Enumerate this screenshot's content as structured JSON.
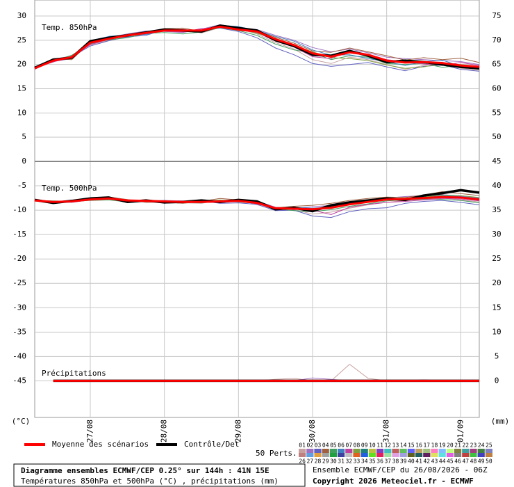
{
  "chart_data": {
    "type": "line",
    "title": "Diagramme ensembles ECMWF/CEP 0.25° sur 144h : 41N 15E",
    "subtitle": "Températures 850hPa et 500hPa (°C) , précipitations (mm)",
    "run_label": "Ensemble ECMWF/CEP du 26/08/2026 - 06Z",
    "copyright": "Copyright 2026 Meteociel.fr - ECMWF",
    "y_unit": "(°C)",
    "y2_unit": "(mm)",
    "mean_label": "Moyenne des scénarios",
    "mean_color": "#ff0000",
    "control_label": "Contrôle/Det",
    "control_color": "#000000",
    "perts_label": "50 Perts.",
    "grid": true,
    "categories": [
      null,
      null,
      null,
      "27/08",
      null,
      null,
      null,
      "28/08",
      null,
      null,
      null,
      "29/08",
      null,
      null,
      null,
      "30/08",
      null,
      null,
      null,
      "31/08",
      null,
      null,
      null,
      "01/09",
      null
    ],
    "panels": [
      {
        "label": "Temp. 850hPa",
        "ylim": [
          0,
          33.3
        ],
        "yticks": [
          0,
          5,
          10,
          15,
          20,
          25,
          30
        ],
        "y2lim": [
          45,
          78.3
        ],
        "y2ticks": [
          50,
          55,
          60,
          65,
          70,
          75
        ],
        "mean": [
          19.2,
          20.8,
          21.5,
          24.5,
          25.3,
          26.0,
          26.5,
          27.0,
          27.0,
          27.0,
          27.8,
          27.2,
          26.8,
          25.2,
          24.0,
          22.3,
          21.6,
          22.5,
          22.0,
          20.8,
          20.4,
          20.5,
          20.3,
          19.8,
          19.5
        ],
        "control": [
          19.3,
          21.0,
          21.4,
          24.8,
          25.5,
          26.0,
          26.6,
          27.2,
          27.0,
          26.8,
          28.0,
          27.5,
          27.0,
          25.0,
          23.8,
          22.0,
          21.8,
          22.8,
          21.8,
          20.5,
          20.8,
          20.5,
          20.0,
          19.5,
          19.2
        ]
      },
      {
        "label": "Temp. 500hPa",
        "ylim": [
          -52.5,
          0
        ],
        "yticks": [
          -45,
          -40,
          -35,
          -30,
          -25,
          -20,
          -15,
          -10,
          -5
        ],
        "y2lim": [
          -7.5,
          45
        ],
        "y2ticks": [
          0,
          5,
          10,
          15,
          20,
          25,
          30,
          35,
          40,
          45
        ],
        "mean": [
          -8.0,
          -8.3,
          -8.2,
          -7.8,
          -7.6,
          -8.0,
          -8.1,
          -8.2,
          -8.3,
          -8.3,
          -8.2,
          -8.1,
          -8.5,
          -9.6,
          -9.7,
          -9.8,
          -9.5,
          -8.8,
          -8.3,
          -7.8,
          -7.7,
          -7.5,
          -7.3,
          -7.4,
          -7.8
        ],
        "control": [
          -7.9,
          -8.5,
          -8.1,
          -7.6,
          -7.4,
          -8.3,
          -8.0,
          -8.4,
          -8.3,
          -8.0,
          -8.3,
          -7.9,
          -8.2,
          -9.8,
          -9.5,
          -10.2,
          -9.0,
          -8.4,
          -8.0,
          -7.6,
          -7.9,
          -7.0,
          -6.5,
          -5.9,
          -6.4
        ],
        "precip_label": "Précipitations",
        "precip_mean": [
          null,
          0,
          0,
          0,
          0,
          0,
          0,
          0,
          0,
          0,
          0,
          0,
          0,
          0,
          0,
          0,
          0,
          0,
          0,
          0,
          0,
          0,
          0,
          0,
          0
        ],
        "precip_control": [
          null,
          0,
          0,
          0,
          0,
          0,
          0,
          0,
          0,
          0,
          0,
          0,
          0,
          0,
          0,
          0,
          0,
          0,
          0,
          0,
          0,
          0,
          0,
          0,
          0
        ]
      }
    ],
    "members": [
      {
        "name": "01",
        "color": "#c8a0a0",
        "t850": [
          19.1,
          21.0,
          21.8,
          24.0,
          25.0,
          25.6,
          26.3,
          27.1,
          27.3,
          26.5,
          27.6,
          27.4,
          26.3,
          24.5,
          23.2,
          21.0,
          20.2,
          21.5,
          21.0,
          20.0,
          19.0,
          19.8,
          20.5,
          19.2,
          18.8
        ],
        "t500": [
          -8.0,
          -8.4,
          -8.1,
          -7.9,
          -7.8,
          -8.2,
          -8.0,
          -8.4,
          -8.5,
          -8.6,
          -8.0,
          -7.8,
          -8.9,
          -9.8,
          -9.9,
          -10.8,
          -10.4,
          -9.6,
          -8.9,
          -8.4,
          -8.0,
          -7.8,
          -7.5,
          -7.9,
          -8.3
        ],
        "precip": [
          null,
          0,
          0,
          0,
          0,
          0,
          0,
          0,
          0,
          0,
          0,
          0,
          0,
          0.3,
          0.5,
          0,
          0,
          3.4,
          0.5,
          0,
          0,
          0,
          0,
          0,
          0
        ]
      },
      {
        "name": "02",
        "color": "#a070c0",
        "t850": [
          19.3,
          20.6,
          21.2,
          24.2,
          25.6,
          26.3,
          26.9,
          26.8,
          26.6,
          27.3,
          28.2,
          27.6,
          27.2,
          26.0,
          25.0,
          23.5,
          22.6,
          23.2,
          22.4,
          21.5,
          21.2,
          21.0,
          20.8,
          20.6,
          20.0
        ],
        "t500": [
          -7.9,
          -8.2,
          -8.3,
          -7.7,
          -7.5,
          -7.9,
          -8.3,
          -8.0,
          -8.1,
          -8.4,
          -8.4,
          -8.2,
          -8.1,
          -9.4,
          -9.6,
          -9.3,
          -9.0,
          -8.5,
          -7.9,
          -7.5,
          -7.2,
          -7.0,
          -6.8,
          -7.1,
          -7.5
        ],
        "precip": [
          null,
          0,
          0,
          0,
          0,
          0,
          0,
          0,
          0,
          0,
          0,
          0,
          0,
          0,
          0,
          0.6,
          0.3,
          0,
          0,
          0,
          0,
          0.2,
          0,
          0,
          0
        ]
      },
      {
        "name": "03",
        "color": "#6060c0",
        "t850": [
          19.0,
          20.9,
          21.6,
          23.8,
          24.9,
          25.7,
          26.0,
          27.2,
          26.9,
          27.1,
          27.5,
          26.8,
          25.5,
          23.4,
          22.0,
          20.2,
          19.6,
          20.0,
          20.4,
          19.5,
          18.7,
          19.6,
          19.9,
          19.0,
          18.6
        ],
        "t500": [
          -8.1,
          -8.3,
          -8.4,
          -7.9,
          -7.7,
          -8.1,
          -7.9,
          -8.6,
          -8.2,
          -8.1,
          -8.6,
          -8.5,
          -8.8,
          -10.1,
          -10.0,
          -11.2,
          -11.5,
          -10.3,
          -9.7,
          -9.5,
          -8.6,
          -8.2,
          -8.0,
          -8.4,
          -8.9
        ]
      },
      {
        "name": "04",
        "color": "#a06040",
        "t850": [
          19.4,
          21.2,
          21.0,
          24.6,
          25.4,
          26.2,
          26.7,
          27.4,
          27.5,
          26.8,
          27.9,
          27.3,
          26.9,
          25.6,
          24.4,
          22.8,
          22.5,
          23.4,
          22.6,
          21.8,
          20.9,
          21.4,
          21.0,
          21.3,
          20.4
        ],
        "t500": [
          -8.0,
          -8.5,
          -8.0,
          -7.6,
          -7.3,
          -7.8,
          -8.4,
          -8.3,
          -8.6,
          -8.2,
          -7.6,
          -7.9,
          -8.3,
          -9.5,
          -9.2,
          -9.0,
          -8.6,
          -8.0,
          -7.6,
          -7.3,
          -7.4,
          -6.9,
          -6.2,
          -6.6,
          -7.0
        ]
      },
      {
        "name": "05",
        "color": "#40a060",
        "t850": [
          19.2,
          20.7,
          21.9,
          24.3,
          25.1,
          25.5,
          26.4,
          26.6,
          26.3,
          26.7,
          27.6,
          27.0,
          26.0,
          24.2,
          23.0,
          22.4,
          21.0,
          21.8,
          21.5,
          20.2,
          20.0,
          20.2,
          19.4,
          19.8,
          19.0
        ],
        "t500": [
          -8.0,
          -8.1,
          -8.2,
          -8.0,
          -7.9,
          -8.3,
          -8.2,
          -8.1,
          -8.4,
          -8.5,
          -8.1,
          -8.3,
          -8.6,
          -9.7,
          -10.1,
          -10.3,
          -9.9,
          -9.2,
          -8.7,
          -8.1,
          -7.9,
          -7.7,
          -7.8,
          -8.0,
          -8.5
        ]
      },
      {
        "name": "06",
        "color": "#4080c0",
        "t850": [
          19.1,
          21.1,
          21.3,
          24.9,
          25.8,
          26.1,
          26.2,
          27.0,
          27.2,
          26.9,
          28.1,
          27.8,
          27.0,
          25.8,
          24.8,
          23.0,
          21.9,
          22.0,
          21.2,
          20.6,
          19.8,
          20.6,
          20.9,
          19.6,
          19.3
        ],
        "t500": [
          -7.9,
          -8.4,
          -8.2,
          -7.8,
          -7.6,
          -8.0,
          -8.1,
          -8.0,
          -8.3,
          -8.2,
          -8.5,
          -8.0,
          -8.4,
          -9.9,
          -9.4,
          -9.6,
          -9.3,
          -8.6,
          -8.4,
          -7.9,
          -7.6,
          -7.4,
          -7.0,
          -7.2,
          -7.6
        ]
      },
      {
        "name": "07",
        "color": "#c040a0",
        "t850": [
          19.3,
          20.5,
          21.7,
          24.1,
          25.2,
          25.9,
          26.8,
          26.9,
          26.7,
          27.4,
          27.7,
          27.1,
          26.6,
          24.8,
          23.6,
          21.6,
          21.2,
          22.9,
          22.1,
          21.0,
          20.6,
          20.1,
          19.8,
          20.4,
          19.8
        ],
        "t500": [
          -8.1,
          -8.2,
          -8.3,
          -7.7,
          -7.7,
          -8.1,
          -8.0,
          -8.5,
          -8.2,
          -8.4,
          -8.2,
          -8.1,
          -8.7,
          -9.6,
          -9.8,
          -10.0,
          -10.9,
          -9.4,
          -8.8,
          -8.4,
          -8.2,
          -7.9,
          -7.6,
          -7.7,
          -8.1
        ]
      },
      {
        "name": "08",
        "color": "#80a040",
        "t850": [
          19.2,
          20.8,
          21.4,
          24.7,
          25.3,
          26.0,
          26.5,
          27.3,
          27.1,
          26.6,
          27.8,
          27.5,
          26.4,
          25.4,
          23.9,
          22.6,
          21.4,
          21.2,
          20.8,
          19.9,
          19.2,
          19.5,
          20.2,
          20.0,
          19.6
        ],
        "t500": [
          -8.0,
          -8.3,
          -8.1,
          -7.9,
          -7.5,
          -8.0,
          -8.2,
          -8.3,
          -8.4,
          -8.3,
          -7.9,
          -8.2,
          -8.3,
          -9.5,
          -9.7,
          -9.9,
          -9.6,
          -8.9,
          -8.2,
          -7.7,
          -7.5,
          -7.3,
          -6.9,
          -7.0,
          -7.4
        ]
      },
      {
        "name": "09",
        "color": "#208080"
      },
      {
        "name": "10",
        "color": "#c0c040"
      },
      {
        "name": "11",
        "color": "#8040c0"
      },
      {
        "name": "12",
        "color": "#40c0c0"
      },
      {
        "name": "13",
        "color": "#c06060"
      },
      {
        "name": "14",
        "color": "#60c060"
      },
      {
        "name": "15",
        "color": "#6060ff"
      },
      {
        "name": "16",
        "color": "#c0a060"
      },
      {
        "name": "17",
        "color": "#a0c080"
      },
      {
        "name": "18",
        "color": "#ff80c0"
      },
      {
        "name": "19",
        "color": "#80c0ff"
      },
      {
        "name": "20",
        "color": "#c0ff80"
      },
      {
        "name": "21",
        "color": "#808040"
      },
      {
        "name": "22",
        "color": "#40a0a0"
      },
      {
        "name": "23",
        "color": "#a04080"
      },
      {
        "name": "24",
        "color": "#408040"
      },
      {
        "name": "25",
        "color": "#8080c0"
      },
      {
        "name": "26",
        "color": "#c08080"
      },
      {
        "name": "27",
        "color": "#60a0e0"
      },
      {
        "name": "28",
        "color": "#e0a040"
      },
      {
        "name": "29",
        "color": "#a0a0a0"
      },
      {
        "name": "30",
        "color": "#20a040"
      },
      {
        "name": "31",
        "color": "#4040a0"
      },
      {
        "name": "32",
        "color": "#c0c0c0"
      },
      {
        "name": "33",
        "color": "#e06020"
      },
      {
        "name": "34",
        "color": "#2060e0"
      },
      {
        "name": "35",
        "color": "#60e020"
      },
      {
        "name": "36",
        "color": "#e02060"
      },
      {
        "name": "37",
        "color": "#a0e0a0"
      },
      {
        "name": "38",
        "color": "#e0a0e0"
      },
      {
        "name": "39",
        "color": "#a0a0e0"
      },
      {
        "name": "40",
        "color": "#606020"
      },
      {
        "name": "41",
        "color": "#206060"
      },
      {
        "name": "42",
        "color": "#602060"
      },
      {
        "name": "43",
        "color": "#e0e060"
      },
      {
        "name": "44",
        "color": "#60e0e0"
      },
      {
        "name": "45",
        "color": "#e060e0"
      },
      {
        "name": "46",
        "color": "#808080"
      },
      {
        "name": "47",
        "color": "#c04040"
      },
      {
        "name": "48",
        "color": "#40c040"
      },
      {
        "name": "49",
        "color": "#4040c0"
      },
      {
        "name": "50",
        "color": "#c08040"
      }
    ]
  }
}
